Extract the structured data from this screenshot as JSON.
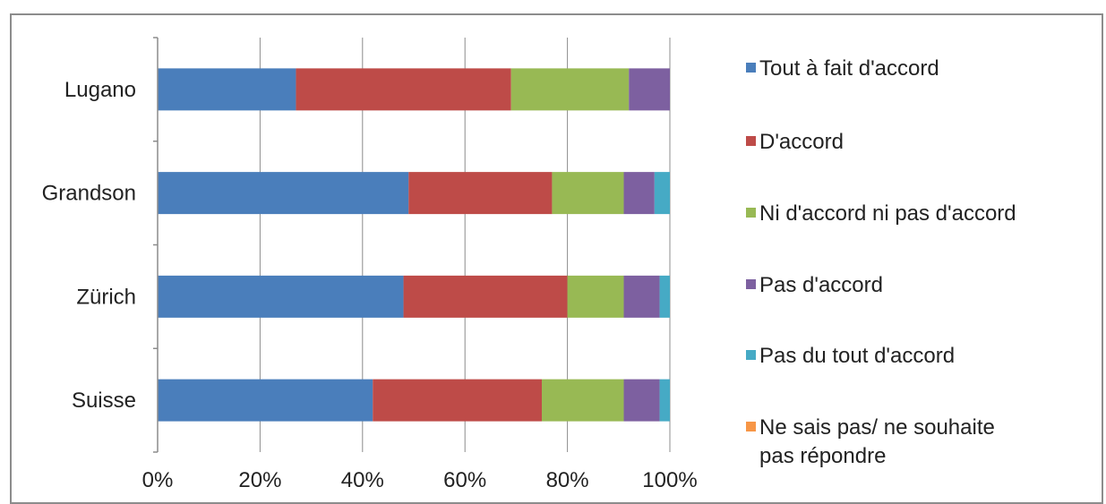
{
  "chart_data": {
    "type": "bar",
    "orientation": "horizontal",
    "stacked": "percent",
    "categories": [
      "Lugano",
      "Grandson",
      "Zürich",
      "Suisse"
    ],
    "series": [
      {
        "name": "Tout à fait d'accord",
        "color": "#4a7ebb",
        "values": [
          27,
          49,
          48,
          42
        ]
      },
      {
        "name": "D'accord",
        "color": "#be4b48",
        "values": [
          42,
          28,
          32,
          33
        ]
      },
      {
        "name": "Ni d'accord ni pas d'accord",
        "color": "#98b954",
        "values": [
          23,
          14,
          11,
          16
        ]
      },
      {
        "name": "Pas d'accord",
        "color": "#7d60a0",
        "values": [
          8,
          6,
          7,
          7
        ]
      },
      {
        "name": "Pas du tout d'accord",
        "color": "#46aac5",
        "values": [
          0,
          3,
          2,
          2
        ]
      },
      {
        "name": "Ne sais pas/ ne souhaite pas répondre",
        "color": "#f79646",
        "values": [
          0,
          0,
          0,
          0
        ]
      }
    ],
    "x_ticks": [
      "0%",
      "20%",
      "40%",
      "60%",
      "80%",
      "100%"
    ],
    "xlim": [
      0,
      100
    ],
    "grid": "vertical",
    "legend_position": "right",
    "title": "",
    "xlabel": "",
    "ylabel": ""
  }
}
